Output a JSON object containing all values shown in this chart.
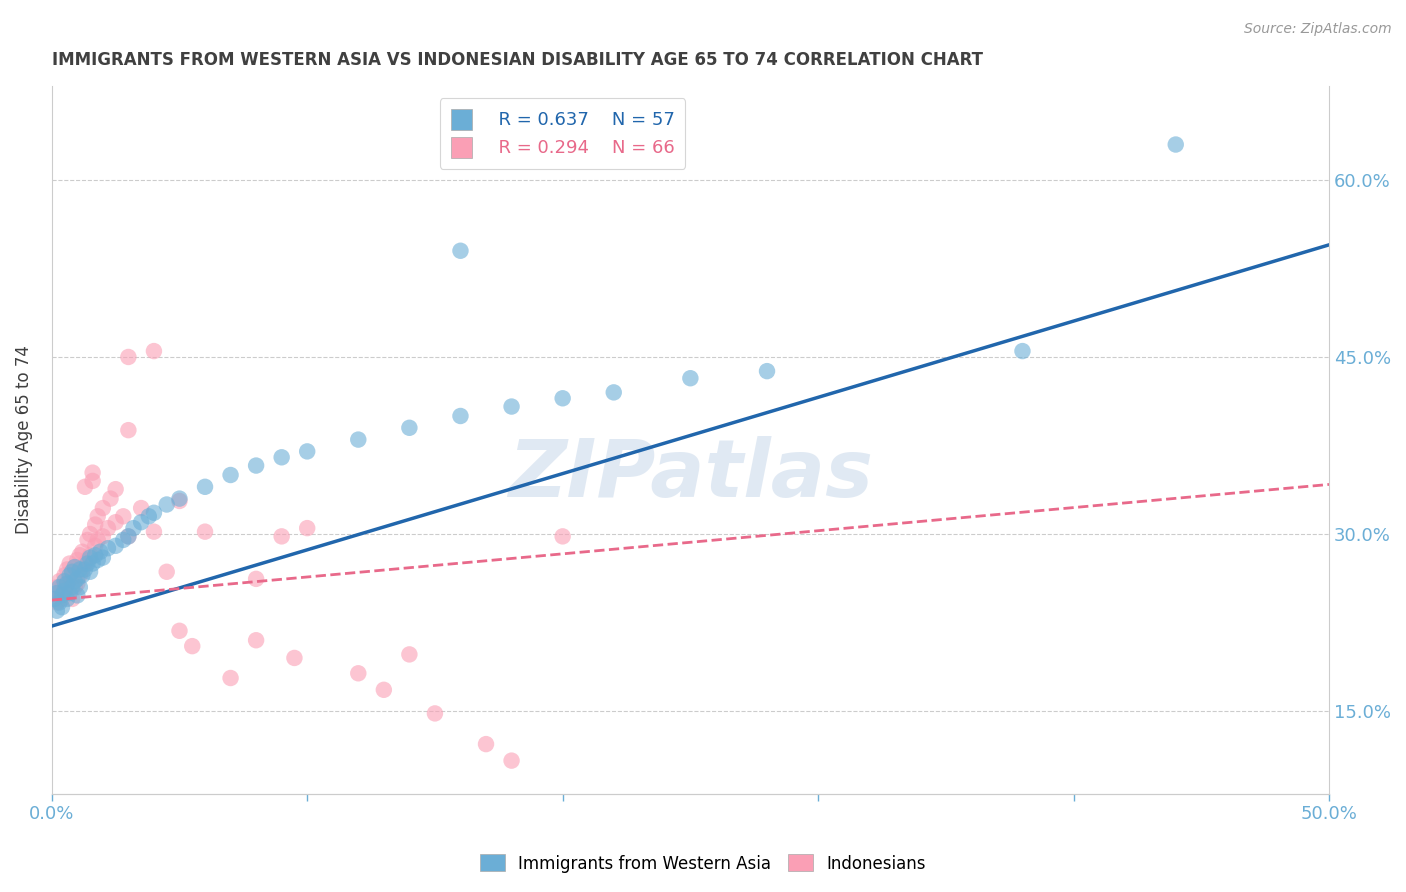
{
  "title": "IMMIGRANTS FROM WESTERN ASIA VS INDONESIAN DISABILITY AGE 65 TO 74 CORRELATION CHART",
  "source_text": "Source: ZipAtlas.com",
  "ylabel_label": "Disability Age 65 to 74",
  "x_min": 0.0,
  "x_max": 0.5,
  "y_min": 0.08,
  "y_max": 0.68,
  "x_ticks": [
    0.0,
    0.1,
    0.2,
    0.3,
    0.4,
    0.5
  ],
  "x_tick_labels": [
    "0.0%",
    "",
    "",
    "",
    "",
    "50.0%"
  ],
  "y_ticks": [
    0.15,
    0.3,
    0.45,
    0.6
  ],
  "y_tick_labels": [
    "15.0%",
    "30.0%",
    "45.0%",
    "60.0%"
  ],
  "legend_R1": "R = 0.637",
  "legend_N1": "N = 57",
  "legend_R2": "R = 0.294",
  "legend_N2": "N = 66",
  "legend_label1": "Immigrants from Western Asia",
  "legend_label2": "Indonesians",
  "color_blue": "#6baed6",
  "color_pink": "#fa9fb5",
  "line_color_blue": "#2166ac",
  "line_color_pink": "#e8698a",
  "watermark": "ZIPatlas",
  "title_color": "#404040",
  "axis_color": "#6baed6",
  "blue_scatter": [
    [
      0.001,
      0.245
    ],
    [
      0.002,
      0.25
    ],
    [
      0.002,
      0.235
    ],
    [
      0.003,
      0.242
    ],
    [
      0.003,
      0.255
    ],
    [
      0.004,
      0.248
    ],
    [
      0.004,
      0.238
    ],
    [
      0.005,
      0.252
    ],
    [
      0.005,
      0.26
    ],
    [
      0.006,
      0.245
    ],
    [
      0.006,
      0.258
    ],
    [
      0.007,
      0.25
    ],
    [
      0.007,
      0.265
    ],
    [
      0.008,
      0.255
    ],
    [
      0.008,
      0.268
    ],
    [
      0.009,
      0.26
    ],
    [
      0.009,
      0.272
    ],
    [
      0.01,
      0.248
    ],
    [
      0.01,
      0.262
    ],
    [
      0.011,
      0.255
    ],
    [
      0.011,
      0.27
    ],
    [
      0.012,
      0.265
    ],
    [
      0.013,
      0.27
    ],
    [
      0.014,
      0.275
    ],
    [
      0.015,
      0.268
    ],
    [
      0.015,
      0.28
    ],
    [
      0.016,
      0.275
    ],
    [
      0.017,
      0.282
    ],
    [
      0.018,
      0.278
    ],
    [
      0.019,
      0.285
    ],
    [
      0.02,
      0.28
    ],
    [
      0.022,
      0.288
    ],
    [
      0.025,
      0.29
    ],
    [
      0.028,
      0.295
    ],
    [
      0.03,
      0.298
    ],
    [
      0.032,
      0.305
    ],
    [
      0.035,
      0.31
    ],
    [
      0.038,
      0.315
    ],
    [
      0.04,
      0.318
    ],
    [
      0.045,
      0.325
    ],
    [
      0.05,
      0.33
    ],
    [
      0.06,
      0.34
    ],
    [
      0.07,
      0.35
    ],
    [
      0.08,
      0.358
    ],
    [
      0.09,
      0.365
    ],
    [
      0.1,
      0.37
    ],
    [
      0.12,
      0.38
    ],
    [
      0.14,
      0.39
    ],
    [
      0.16,
      0.4
    ],
    [
      0.18,
      0.408
    ],
    [
      0.2,
      0.415
    ],
    [
      0.22,
      0.42
    ],
    [
      0.25,
      0.432
    ],
    [
      0.28,
      0.438
    ],
    [
      0.16,
      0.54
    ],
    [
      0.38,
      0.455
    ],
    [
      0.44,
      0.63
    ]
  ],
  "pink_scatter": [
    [
      0.001,
      0.248
    ],
    [
      0.002,
      0.242
    ],
    [
      0.002,
      0.255
    ],
    [
      0.003,
      0.25
    ],
    [
      0.003,
      0.26
    ],
    [
      0.004,
      0.245
    ],
    [
      0.004,
      0.255
    ],
    [
      0.005,
      0.252
    ],
    [
      0.005,
      0.265
    ],
    [
      0.006,
      0.258
    ],
    [
      0.006,
      0.27
    ],
    [
      0.007,
      0.262
    ],
    [
      0.007,
      0.275
    ],
    [
      0.008,
      0.245
    ],
    [
      0.008,
      0.268
    ],
    [
      0.009,
      0.255
    ],
    [
      0.009,
      0.272
    ],
    [
      0.01,
      0.258
    ],
    [
      0.01,
      0.278
    ],
    [
      0.011,
      0.265
    ],
    [
      0.011,
      0.282
    ],
    [
      0.012,
      0.27
    ],
    [
      0.012,
      0.285
    ],
    [
      0.013,
      0.275
    ],
    [
      0.013,
      0.34
    ],
    [
      0.014,
      0.278
    ],
    [
      0.014,
      0.295
    ],
    [
      0.015,
      0.282
    ],
    [
      0.015,
      0.3
    ],
    [
      0.016,
      0.345
    ],
    [
      0.016,
      0.352
    ],
    [
      0.017,
      0.29
    ],
    [
      0.017,
      0.308
    ],
    [
      0.018,
      0.295
    ],
    [
      0.018,
      0.315
    ],
    [
      0.02,
      0.298
    ],
    [
      0.02,
      0.322
    ],
    [
      0.022,
      0.305
    ],
    [
      0.023,
      0.33
    ],
    [
      0.025,
      0.31
    ],
    [
      0.025,
      0.338
    ],
    [
      0.028,
      0.315
    ],
    [
      0.03,
      0.298
    ],
    [
      0.03,
      0.45
    ],
    [
      0.035,
      0.322
    ],
    [
      0.04,
      0.302
    ],
    [
      0.04,
      0.455
    ],
    [
      0.05,
      0.218
    ],
    [
      0.05,
      0.328
    ],
    [
      0.06,
      0.302
    ],
    [
      0.07,
      0.178
    ],
    [
      0.08,
      0.262
    ],
    [
      0.09,
      0.298
    ],
    [
      0.1,
      0.305
    ],
    [
      0.12,
      0.182
    ],
    [
      0.13,
      0.168
    ],
    [
      0.14,
      0.198
    ],
    [
      0.15,
      0.148
    ],
    [
      0.17,
      0.122
    ],
    [
      0.18,
      0.108
    ],
    [
      0.03,
      0.388
    ],
    [
      0.045,
      0.268
    ],
    [
      0.055,
      0.205
    ],
    [
      0.2,
      0.298
    ],
    [
      0.08,
      0.21
    ],
    [
      0.095,
      0.195
    ]
  ],
  "blue_line": [
    [
      0.0,
      0.222
    ],
    [
      0.5,
      0.545
    ]
  ],
  "pink_line": [
    [
      0.0,
      0.244
    ],
    [
      0.5,
      0.342
    ]
  ],
  "figsize": [
    14.06,
    8.92
  ],
  "dpi": 100
}
